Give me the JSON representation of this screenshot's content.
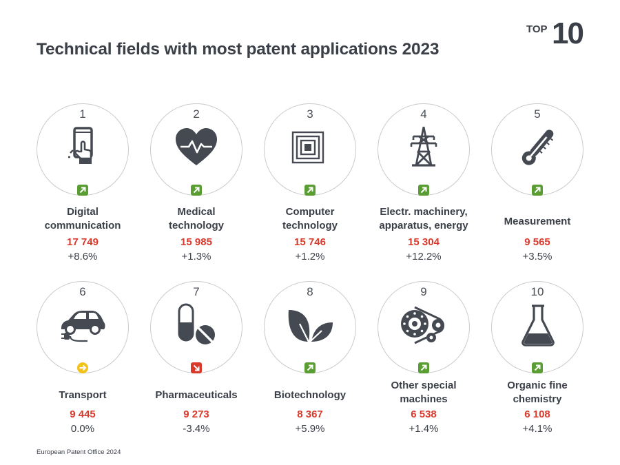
{
  "header": {
    "title": "Technical fields with most patent applications 2023",
    "badge_top": "TOP",
    "badge_number": "10"
  },
  "footer": {
    "source": "European Patent Office 2024"
  },
  "colors": {
    "up": "#5a9e33",
    "flat": "#f2c21b",
    "down": "#d8392b",
    "value": "#d8392b",
    "icon": "#454a52"
  },
  "fields": [
    {
      "rank": "1",
      "name_lines": [
        "Digital",
        "communication"
      ],
      "value": "17 749",
      "change": "+8.6%",
      "trend": "up",
      "icon": "touchscreen-phone-icon"
    },
    {
      "rank": "2",
      "name_lines": [
        "Medical",
        "technology"
      ],
      "value": "15 985",
      "change": "+1.3%",
      "trend": "up",
      "icon": "heartbeat-icon"
    },
    {
      "rank": "3",
      "name_lines": [
        "Computer",
        "technology"
      ],
      "value": "15 746",
      "change": "+1.2%",
      "trend": "up",
      "icon": "chip-icon"
    },
    {
      "rank": "4",
      "name_lines": [
        "Electr. machinery,",
        "apparatus, energy"
      ],
      "value": "15 304",
      "change": "+12.2%",
      "trend": "up",
      "icon": "power-pylon-icon"
    },
    {
      "rank": "5",
      "name_lines": [
        "Measurement"
      ],
      "value": "9 565",
      "change": "+3.5%",
      "trend": "up",
      "icon": "thermometer-icon"
    },
    {
      "rank": "6",
      "name_lines": [
        "Transport"
      ],
      "value": "9 445",
      "change": "0.0%",
      "trend": "flat",
      "icon": "electric-car-icon"
    },
    {
      "rank": "7",
      "name_lines": [
        "Pharmaceuticals"
      ],
      "value": "9 273",
      "change": "-3.4%",
      "trend": "down",
      "icon": "pills-icon"
    },
    {
      "rank": "8",
      "name_lines": [
        "Biotechnology"
      ],
      "value": "8 367",
      "change": "+5.9%",
      "trend": "up",
      "icon": "leaves-icon"
    },
    {
      "rank": "9",
      "name_lines": [
        "Other special",
        "machines"
      ],
      "value": "6 538",
      "change": "+1.4%",
      "trend": "up",
      "icon": "gear-belt-icon"
    },
    {
      "rank": "10",
      "name_lines": [
        "Organic fine",
        "chemistry"
      ],
      "value": "6 108",
      "change": "+4.1%",
      "trend": "up",
      "icon": "flask-icon"
    }
  ]
}
